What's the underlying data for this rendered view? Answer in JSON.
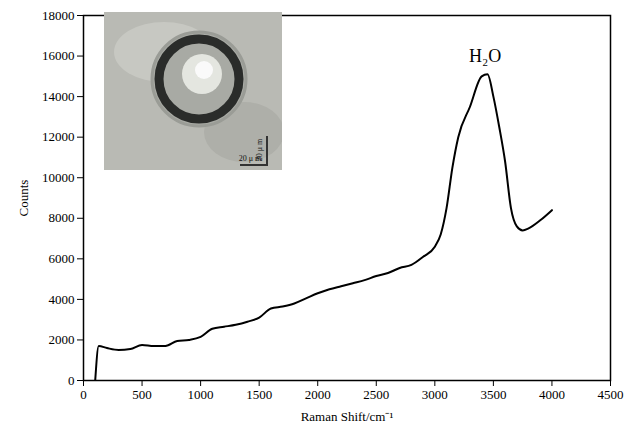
{
  "chart_data": {
    "type": "line",
    "xlabel": "Raman Shift/cm⁻¹",
    "ylabel": "Counts",
    "color": "#000000",
    "x": [
      100,
      130,
      200,
      300,
      400,
      500,
      600,
      700,
      800,
      900,
      1000,
      1100,
      1200,
      1300,
      1400,
      1500,
      1600,
      1700,
      1800,
      1900,
      2000,
      2100,
      2200,
      2300,
      2400,
      2500,
      2600,
      2700,
      2800,
      2900,
      3000,
      3050,
      3100,
      3150,
      3200,
      3300,
      3400,
      3450,
      3500,
      3550,
      3600,
      3650,
      3700,
      3750,
      3800,
      3900,
      4000
    ],
    "values": [
      0,
      1700,
      1600,
      1500,
      1550,
      1750,
      1700,
      1700,
      1950,
      2000,
      2150,
      2550,
      2650,
      2750,
      2900,
      3100,
      3550,
      3650,
      3800,
      4050,
      4300,
      4500,
      4650,
      4800,
      4950,
      5150,
      5300,
      5550,
      5700,
      6100,
      6600,
      7200,
      8500,
      10500,
      12000,
      13500,
      15000,
      15100,
      14000,
      12500,
      10800,
      8500,
      7600,
      7400,
      7500,
      7900,
      8400
    ],
    "xlim": [
      0,
      4500
    ],
    "xticks": [
      0,
      500,
      1000,
      1500,
      2000,
      2500,
      3000,
      3500,
      4000,
      4500
    ],
    "ylim": [
      0,
      18000
    ],
    "yticks": [
      0,
      2000,
      4000,
      6000,
      8000,
      10000,
      12000,
      14000,
      16000,
      18000
    ],
    "annotations": [
      {
        "text": "H₂O",
        "x": 3430,
        "y": 15700
      }
    ],
    "inset_labels": [
      "20 μ m",
      "20 μ m"
    ]
  }
}
